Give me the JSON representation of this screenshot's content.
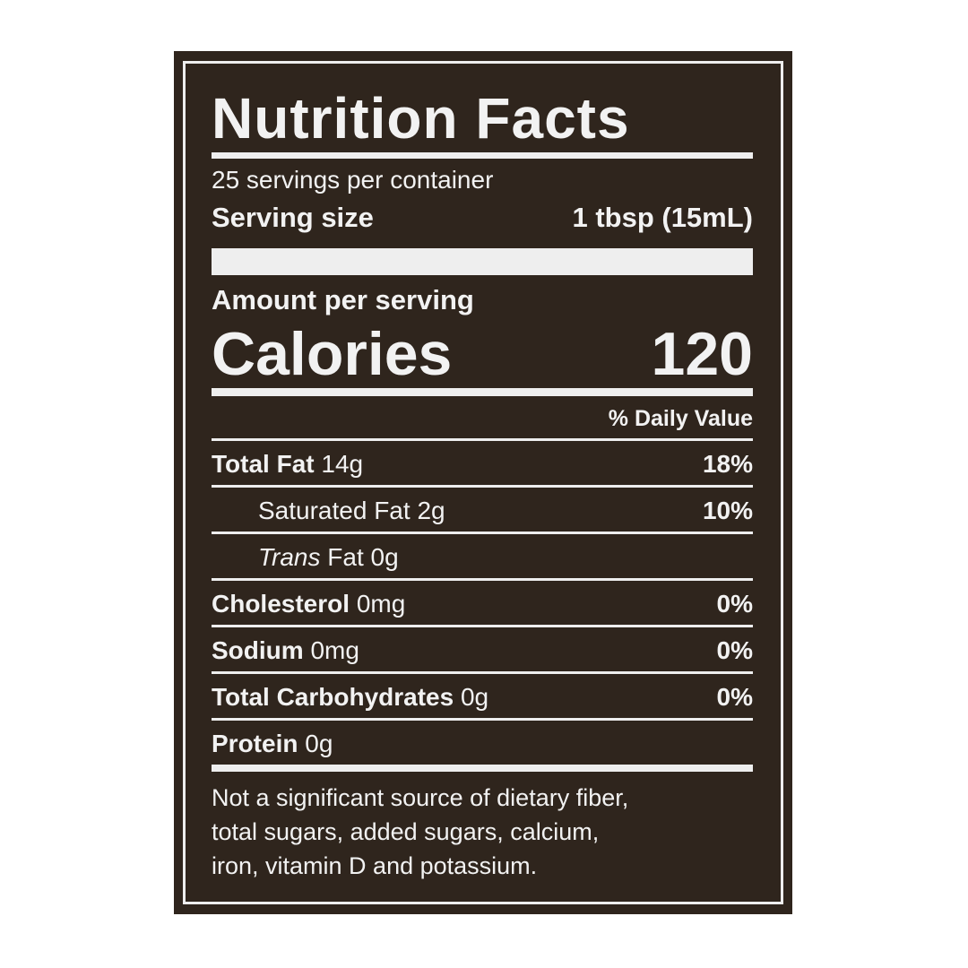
{
  "title": "Nutrition Facts",
  "servings_per_container": "25 servings per container",
  "serving_size": {
    "label": "Serving size",
    "value": "1 tbsp (15mL)"
  },
  "amount_per_serving": "Amount per serving",
  "calories": {
    "label": "Calories",
    "value": "120"
  },
  "daily_value_header": "% Daily Value",
  "nutrients": [
    {
      "name": "Total Fat",
      "amount": "14g",
      "dv": "18%"
    },
    {
      "name": "Saturated Fat",
      "amount": "2g",
      "dv": "10%"
    },
    {
      "name_italic": "Trans",
      "name": "Fat",
      "amount": "0g",
      "dv": ""
    },
    {
      "name": "Cholesterol",
      "amount": "0mg",
      "dv": "0%"
    },
    {
      "name": "Sodium",
      "amount": "0mg",
      "dv": "0%"
    },
    {
      "name": "Total Carbohydrates",
      "amount": "0g",
      "dv": "0%"
    },
    {
      "name": "Protein",
      "amount": "0g",
      "dv": ""
    }
  ],
  "footnote": [
    "Not a significant source of dietary fiber,",
    "total sugars, added sugars, calcium,",
    "iron, vitamin D and potassium."
  ],
  "colors": {
    "background": "#2f251d",
    "text": "#f2f2f2"
  }
}
